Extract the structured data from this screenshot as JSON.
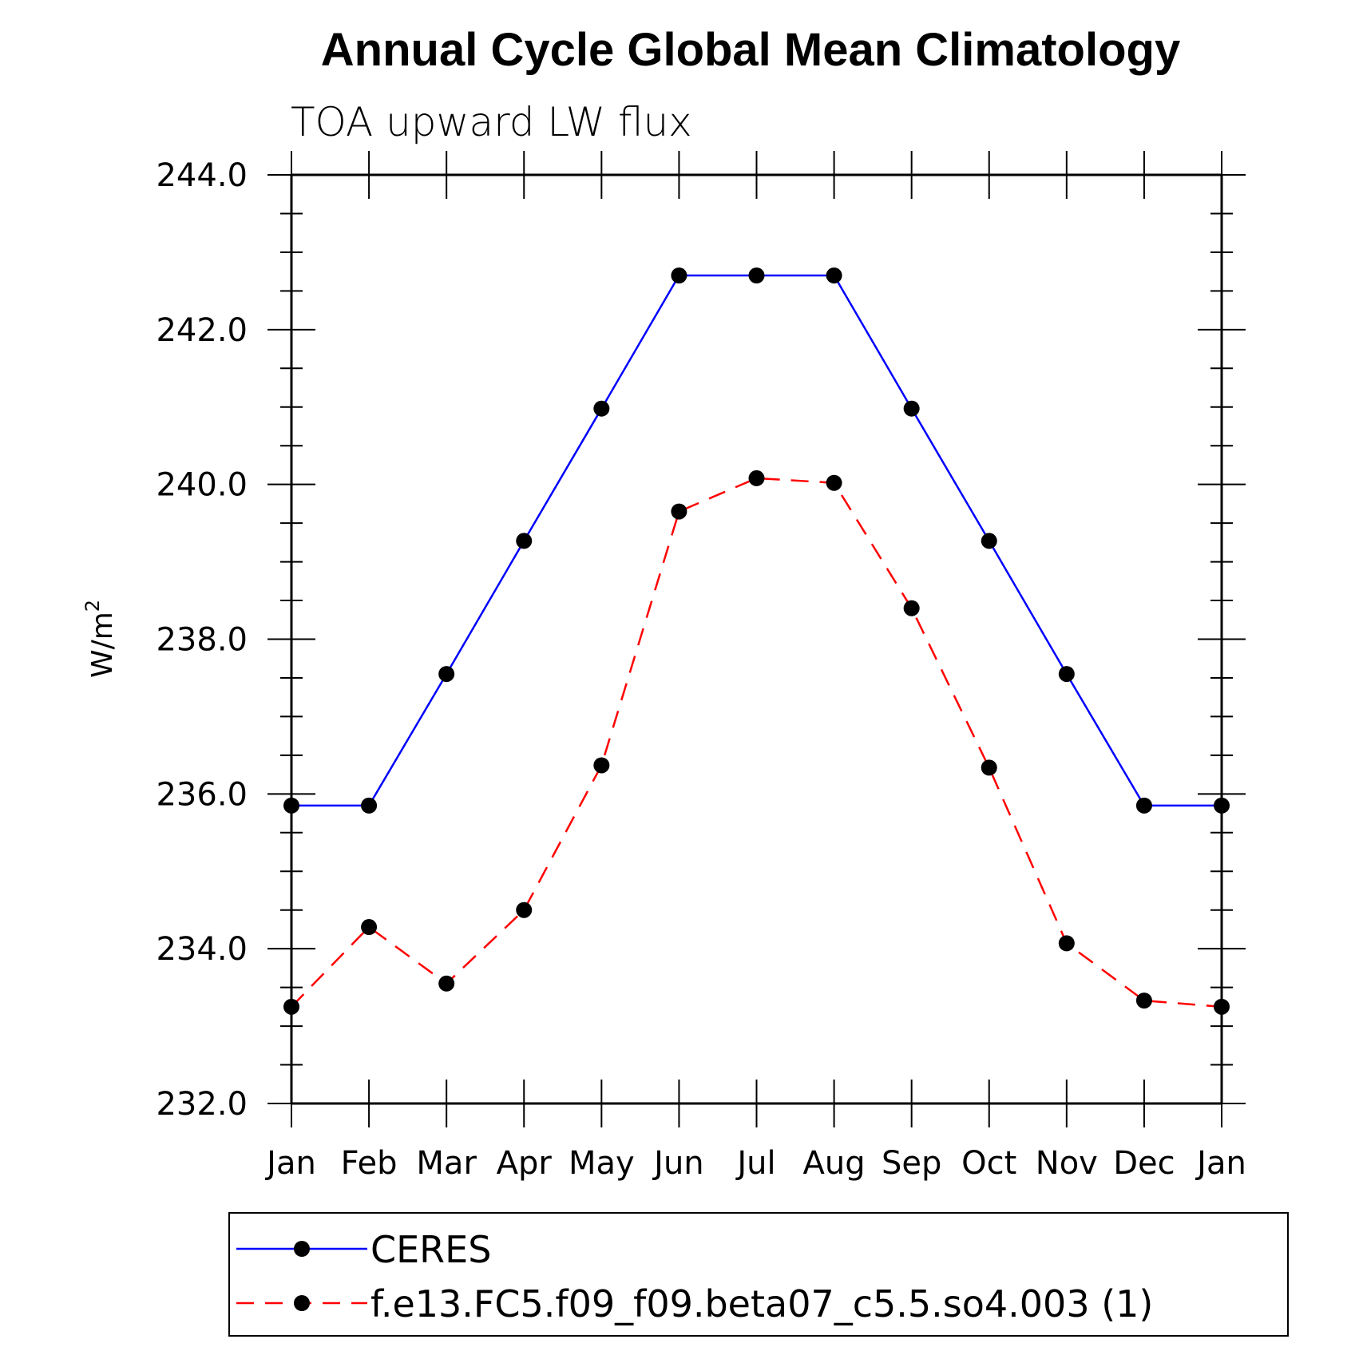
{
  "chart_data": {
    "type": "line",
    "title": "Annual Cycle Global Mean Climatology",
    "subtitle": "TOA upward LW flux",
    "ylabel": "W/m",
    "ylabel_sup": "2",
    "xlabel": "",
    "categories": [
      "Jan",
      "Feb",
      "Mar",
      "Apr",
      "May",
      "Jun",
      "Jul",
      "Aug",
      "Sep",
      "Oct",
      "Nov",
      "Dec",
      "Jan"
    ],
    "ylim": [
      232.0,
      244.0
    ],
    "yticks": [
      "232.0",
      "234.0",
      "236.0",
      "238.0",
      "240.0",
      "242.0",
      "244.0"
    ],
    "grid": false,
    "legend_position": "bottom",
    "series": [
      {
        "name": "CERES",
        "color": "#0000ff",
        "dash": "solid",
        "marker": "circle",
        "values": [
          235.85,
          235.85,
          237.55,
          239.27,
          240.98,
          242.7,
          242.7,
          242.7,
          240.98,
          239.27,
          237.55,
          235.85,
          235.85
        ]
      },
      {
        "name": "f.e13.FC5.f09_f09.beta07_c5.5.so4.003 (1)",
        "color": "#ff0000",
        "dash": "dashed",
        "marker": "circle",
        "values": [
          233.25,
          234.28,
          233.55,
          234.5,
          236.37,
          239.65,
          240.08,
          240.02,
          238.4,
          236.34,
          234.07,
          233.33,
          233.25
        ]
      }
    ]
  }
}
